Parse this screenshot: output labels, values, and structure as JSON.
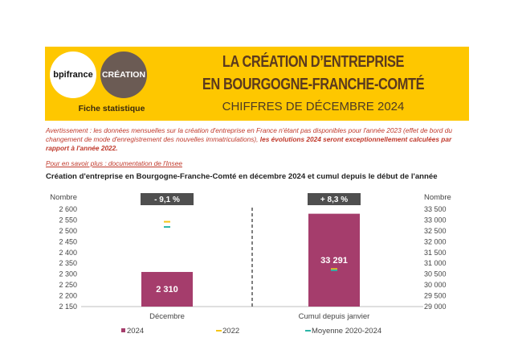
{
  "header": {
    "logo_bpifrance": "bpifrance",
    "logo_creation": "CRÉATION",
    "fiche_label": "Fiche statistique",
    "title_line1": "LA CRÉATION D’ENTREPRISE",
    "title_line2": "EN BOURGOGNE-FRANCHE-COMTÉ",
    "subtitle": "CHIFFRES DE DÉCEMBRE 2024"
  },
  "warning": {
    "text": "Avertissement : les données mensuelles sur la création d'entreprise en France n'étant pas disponibles pour l'année 2023 (effet de bord du changement de mode d'enregistrement des nouvelles immatriculations),",
    "bold": " les évolutions 2024 seront exceptionnellement calculées par rapport à l'année 2022."
  },
  "insee_link": "Pour en savoir plus : documentation de l'Insee",
  "chart_title": "Création d'entreprise en Bourgogne-Franche-Comté en décembre 2024 et cumul depuis le début de l'année",
  "colors": {
    "banner": "#fec700",
    "bar2024": "#a53d6c",
    "line2022": "#f5c518",
    "lineAvg": "#2bb6a8",
    "badge": "#4f4f4f",
    "warning": "#c0392b"
  },
  "chart_data": {
    "type": "bar",
    "unit_left": "Nombre",
    "unit_right": "Nombre",
    "left_axis": {
      "ylim": [
        2150,
        2600
      ],
      "ticks": [
        "2 600",
        "2 550",
        "2 500",
        "2 450",
        "2 400",
        "2 350",
        "2 300",
        "2 250",
        "2 200",
        "2 150"
      ],
      "tick_values": [
        2600,
        2550,
        2500,
        2450,
        2400,
        2350,
        2300,
        2250,
        2200,
        2150
      ]
    },
    "right_axis": {
      "ylim": [
        29000,
        33500
      ],
      "ticks": [
        "33 500",
        "33 000",
        "32 500",
        "32 000",
        "31 500",
        "31 000",
        "30 500",
        "30 000",
        "29 500",
        "29 000"
      ],
      "tick_values": [
        33500,
        33000,
        32500,
        32000,
        31500,
        31000,
        30500,
        30000,
        29500,
        29000
      ]
    },
    "groups": [
      {
        "category": "Décembre",
        "axis": "left",
        "value_2024": 2310,
        "label_2024": "2 310",
        "value_2022": 2542,
        "value_avg": 2518,
        "change": "- 9,1 %"
      },
      {
        "category": "Cumul depuis janvier",
        "axis": "right",
        "value_2024": 33291,
        "label_2024": "33 291",
        "value_2022": 30737,
        "value_avg": 30680,
        "change": "+ 8,3 %"
      }
    ],
    "legend": [
      "2024",
      "2022",
      "Moyenne 2020-2024"
    ],
    "legend_position": "bottom"
  }
}
